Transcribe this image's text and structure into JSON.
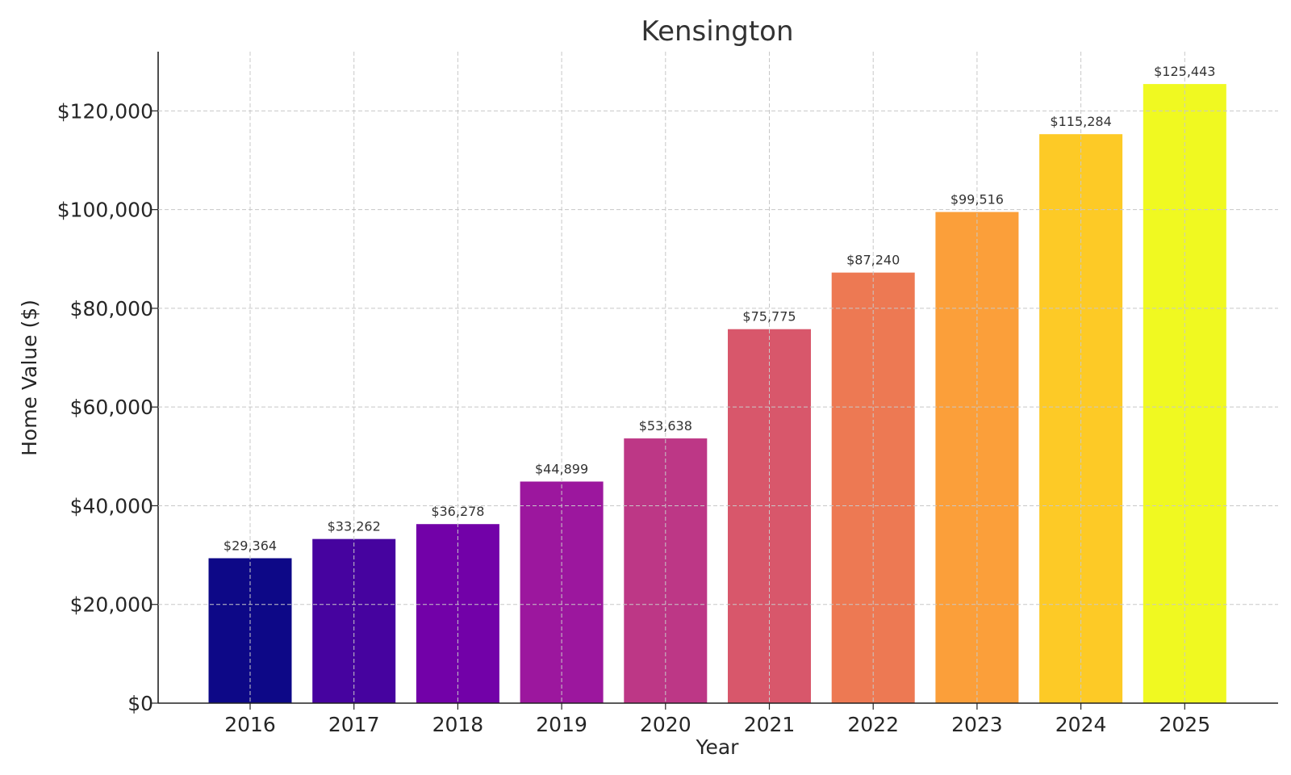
{
  "chart_data": {
    "type": "bar",
    "title": "Kensington",
    "xlabel": "Year",
    "ylabel": "Home Value ($)",
    "categories": [
      "2016",
      "2017",
      "2018",
      "2019",
      "2020",
      "2021",
      "2022",
      "2023",
      "2024",
      "2025"
    ],
    "values": [
      29364,
      33262,
      36278,
      44899,
      53638,
      75775,
      87240,
      99516,
      115284,
      125443
    ],
    "data_labels": [
      "$29,364",
      "$33,262",
      "$36,278",
      "$44,899",
      "$53,638",
      "$75,775",
      "$87,240",
      "$99,516",
      "$115,284",
      "$125,443"
    ],
    "colors": [
      "#0d0887",
      "#46039f",
      "#7201a8",
      "#9c179e",
      "#bd3786",
      "#d8576b",
      "#ed7953",
      "#fb9f3a",
      "#fdca26",
      "#f0f921"
    ],
    "ylim": [
      0,
      132000
    ],
    "yticks": [
      0,
      20000,
      40000,
      60000,
      80000,
      100000,
      120000
    ],
    "ytick_labels": [
      "$0",
      "$20,000",
      "$40,000",
      "$60,000",
      "$80,000",
      "$100,000",
      "$120,000"
    ],
    "grid": true
  }
}
